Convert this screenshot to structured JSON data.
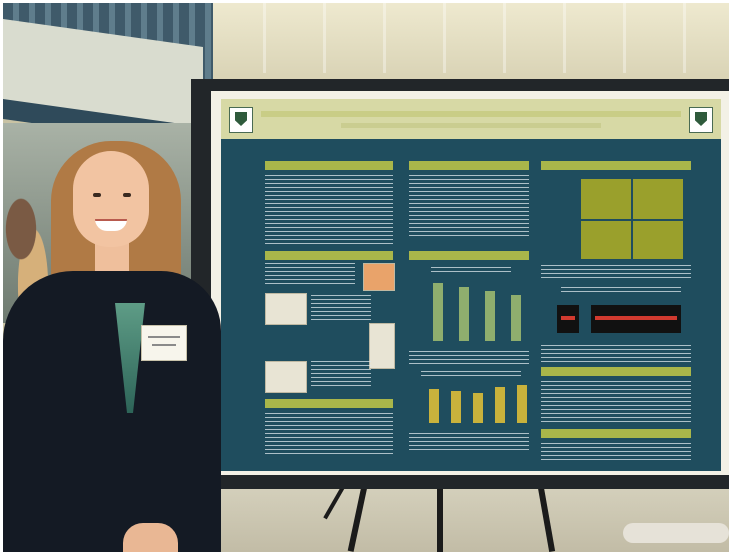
{
  "scene": {
    "description_colors": {
      "poster_background": "#1f4d5e",
      "poster_section_headers": "#a9b64a",
      "poster_header_band": "#d7d9a5",
      "jacket": "#141a24",
      "hair": "#b07a45"
    }
  }
}
